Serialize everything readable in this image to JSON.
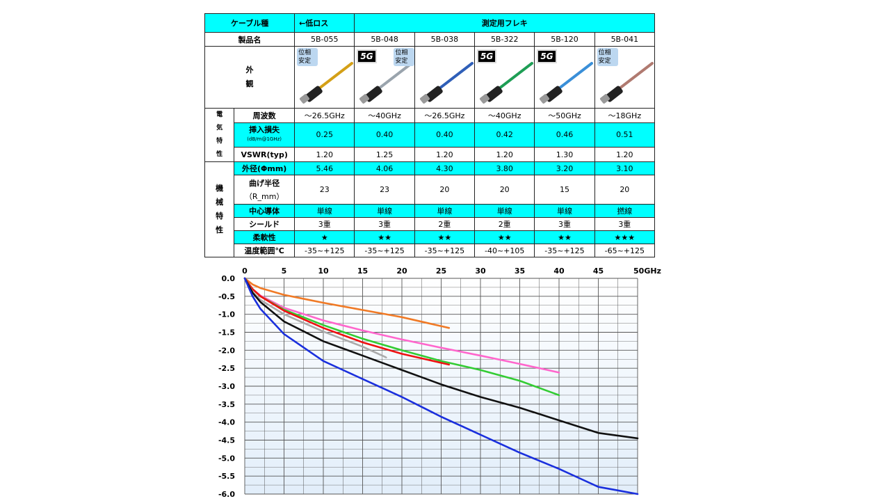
{
  "table": {
    "header": {
      "label": "ケーブル種",
      "low_loss": "←低ロス",
      "category": "測定用フレキ"
    },
    "product_label": "製品名",
    "products": [
      "5B-055",
      "5B-048",
      "5B-038",
      "5B-322",
      "5B-120",
      "5B-041"
    ],
    "appearance_label": "外観",
    "badges": [
      {
        "phase": "位相安定",
        "five_g": ""
      },
      {
        "phase": "位相安定",
        "five_g": "5G"
      },
      {
        "phase": "",
        "five_g": ""
      },
      {
        "phase": "",
        "five_g": "5G"
      },
      {
        "phase": "",
        "five_g": "5G"
      },
      {
        "phase": "位相安定",
        "five_g": ""
      }
    ],
    "cable_colors": [
      "#d4a017",
      "#9aa4ad",
      "#2f5fb8",
      "#1e9e55",
      "#3a8fd8",
      "#b07a70"
    ],
    "electrical_label": "電気特性",
    "mechanical_label": "機械特性",
    "rows": {
      "frequency": {
        "label": "周波数",
        "values": [
          "～26.5GHz",
          "～40GHz",
          "～26.5GHz",
          "～40GHz",
          "～50GHz",
          "～18GHz"
        ]
      },
      "insertion_loss": {
        "label": "挿入損失",
        "sub": "(dB/m@1GHz)",
        "values": [
          "0.25",
          "0.40",
          "0.40",
          "0.42",
          "0.46",
          "0.51"
        ]
      },
      "vswr": {
        "label": "VSWR(typ)",
        "values": [
          "1.20",
          "1.25",
          "1.20",
          "1.20",
          "1.30",
          "1.20"
        ]
      },
      "outer_diameter": {
        "label": "外径(Φmm)",
        "values": [
          "5.46",
          "4.06",
          "4.30",
          "3.80",
          "3.20",
          "3.10"
        ]
      },
      "bend_radius": {
        "label": "曲げ半径",
        "sub": "（R_mm）",
        "values": [
          "23",
          "23",
          "20",
          "20",
          "15",
          "20"
        ]
      },
      "center_conductor": {
        "label": "中心導体",
        "values": [
          "単線",
          "単線",
          "単線",
          "単線",
          "単線",
          "撚線"
        ]
      },
      "shield": {
        "label": "シールド",
        "values": [
          "3重",
          "3重",
          "2重",
          "2重",
          "3重",
          "3重"
        ]
      },
      "flexibility": {
        "label": "柔軟性",
        "values": [
          "★",
          "★★",
          "★★",
          "★★",
          "★★",
          "★★★"
        ]
      },
      "temperature": {
        "label": "温度範囲℃",
        "values": [
          "-35~+125",
          "-35~+125",
          "-35~+125",
          "-40~+105",
          "-35~+125",
          "-65~+125"
        ]
      }
    }
  },
  "chart_data": {
    "type": "line",
    "xlim": [
      0,
      50
    ],
    "ylim": [
      -6.0,
      0.0
    ],
    "x_ticks": [
      "0",
      "5",
      "10",
      "15",
      "20",
      "25",
      "30",
      "35",
      "40",
      "45",
      "50GHz"
    ],
    "y_ticks": [
      "0.0",
      "-0.5",
      "-1.0",
      "-1.5",
      "-2.0",
      "-2.5",
      "-3.0",
      "-3.5",
      "-4.0",
      "-4.5",
      "-5.0",
      "-5.5",
      "-6.0"
    ],
    "grid": true,
    "series": [
      {
        "color": "#f07a26",
        "points": [
          [
            0,
            0
          ],
          [
            1,
            -0.17
          ],
          [
            2,
            -0.27
          ],
          [
            5,
            -0.46
          ],
          [
            10,
            -0.68
          ],
          [
            15,
            -0.88
          ],
          [
            20,
            -1.08
          ],
          [
            26,
            -1.38
          ]
        ]
      },
      {
        "color": "#ff66cc",
        "points": [
          [
            0,
            0
          ],
          [
            1,
            -0.3
          ],
          [
            2,
            -0.48
          ],
          [
            5,
            -0.82
          ],
          [
            10,
            -1.17
          ],
          [
            15,
            -1.45
          ],
          [
            20,
            -1.7
          ],
          [
            25,
            -1.93
          ],
          [
            30,
            -2.15
          ],
          [
            35,
            -2.38
          ],
          [
            40,
            -2.62
          ]
        ]
      },
      {
        "color": "#33cc33",
        "points": [
          [
            0,
            0
          ],
          [
            1,
            -0.3
          ],
          [
            2,
            -0.5
          ],
          [
            5,
            -0.87
          ],
          [
            10,
            -1.3
          ],
          [
            15,
            -1.68
          ],
          [
            20,
            -2.0
          ],
          [
            25,
            -2.3
          ],
          [
            30,
            -2.55
          ],
          [
            35,
            -2.85
          ],
          [
            40,
            -3.25
          ]
        ]
      },
      {
        "color": "#ee1111",
        "points": [
          [
            0,
            0
          ],
          [
            1,
            -0.3
          ],
          [
            2,
            -0.5
          ],
          [
            5,
            -0.9
          ],
          [
            10,
            -1.38
          ],
          [
            15,
            -1.78
          ],
          [
            20,
            -2.1
          ],
          [
            26,
            -2.4
          ]
        ]
      },
      {
        "color": "#aaaaaa",
        "points": [
          [
            0,
            0
          ],
          [
            1,
            -0.38
          ],
          [
            2,
            -0.6
          ],
          [
            5,
            -1.0
          ],
          [
            10,
            -1.48
          ],
          [
            15,
            -1.9
          ],
          [
            18,
            -2.2
          ]
        ]
      },
      {
        "color": "#111111",
        "points": [
          [
            0,
            0
          ],
          [
            1,
            -0.4
          ],
          [
            2,
            -0.66
          ],
          [
            5,
            -1.2
          ],
          [
            10,
            -1.75
          ],
          [
            15,
            -2.15
          ],
          [
            20,
            -2.55
          ],
          [
            25,
            -2.95
          ],
          [
            30,
            -3.3
          ],
          [
            35,
            -3.6
          ],
          [
            40,
            -3.95
          ],
          [
            45,
            -4.3
          ],
          [
            50,
            -4.45
          ]
        ]
      },
      {
        "color": "#1a2fdd",
        "points": [
          [
            0,
            0
          ],
          [
            1,
            -0.5
          ],
          [
            2,
            -0.85
          ],
          [
            5,
            -1.55
          ],
          [
            10,
            -2.3
          ],
          [
            15,
            -2.8
          ],
          [
            20,
            -3.3
          ],
          [
            25,
            -3.85
          ],
          [
            30,
            -4.35
          ],
          [
            35,
            -4.85
          ],
          [
            40,
            -5.3
          ],
          [
            45,
            -5.8
          ],
          [
            50,
            -6.0
          ]
        ]
      }
    ]
  }
}
